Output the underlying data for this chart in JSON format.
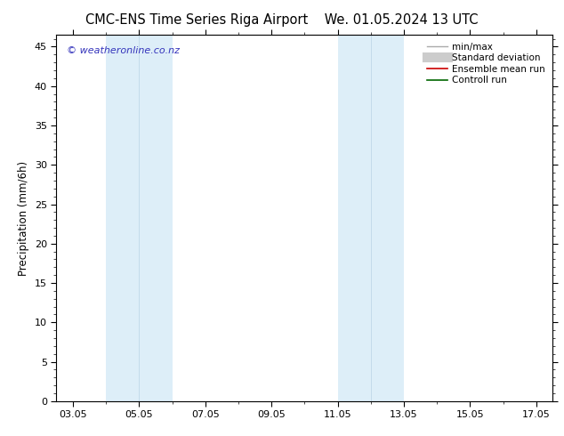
{
  "title_left": "CMC-ENS Time Series Riga Airport",
  "title_right": "We. 01.05.2024 13 UTC",
  "ylabel": "Precipitation (mm/6h)",
  "ylim": [
    0,
    46.5
  ],
  "yticks": [
    0,
    5,
    10,
    15,
    20,
    25,
    30,
    35,
    40,
    45
  ],
  "xlim_start": 2.5,
  "xlim_end": 17.5,
  "xtick_labels": [
    "03.05",
    "05.05",
    "07.05",
    "09.05",
    "11.05",
    "13.05",
    "15.05",
    "17.05"
  ],
  "xtick_positions": [
    3,
    5,
    7,
    9,
    11,
    13,
    15,
    17
  ],
  "shaded_bands": [
    {
      "x_start": 4.0,
      "x_end": 5.0,
      "color": "#ddeef8"
    },
    {
      "x_start": 5.0,
      "x_end": 6.0,
      "color": "#ddeef8"
    },
    {
      "x_start": 11.0,
      "x_end": 12.0,
      "color": "#ddeef8"
    },
    {
      "x_start": 12.0,
      "x_end": 13.0,
      "color": "#ddeef8"
    }
  ],
  "band_dividers": [
    5.0,
    12.0
  ],
  "watermark_text": "© weatheronline.co.nz",
  "watermark_color": "#3333bb",
  "background_color": "#ffffff",
  "legend_entries": [
    {
      "label": "min/max",
      "color": "#aaaaaa",
      "lw": 1.0,
      "type": "line"
    },
    {
      "label": "Standard deviation",
      "color": "#cccccc",
      "lw": 8,
      "type": "line"
    },
    {
      "label": "Ensemble mean run",
      "color": "#cc0000",
      "lw": 1.2,
      "type": "line"
    },
    {
      "label": "Controll run",
      "color": "#006600",
      "lw": 1.2,
      "type": "line"
    }
  ],
  "spine_color": "#000000",
  "tick_color": "#000000",
  "title_fontsize": 10.5,
  "axis_label_fontsize": 8.5,
  "tick_fontsize": 8,
  "legend_fontsize": 7.5,
  "watermark_fontsize": 8
}
